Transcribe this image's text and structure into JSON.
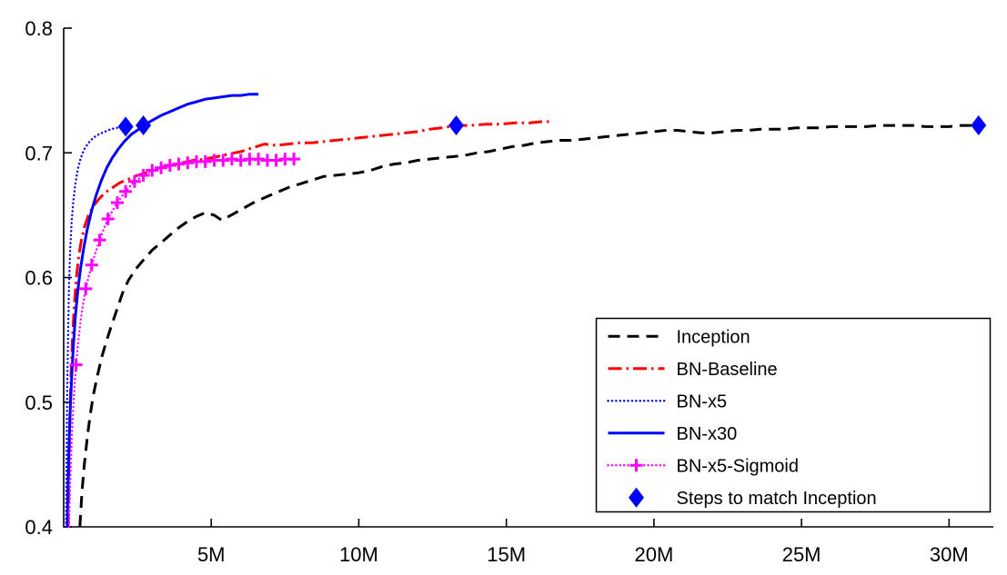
{
  "chart_data": {
    "type": "line",
    "title": "",
    "xlabel": "",
    "ylabel": "",
    "xlim": [
      0,
      31.5
    ],
    "ylim": [
      0.4,
      0.8
    ],
    "grid": false,
    "background": "#ffffff",
    "axis_color": "#000000",
    "x_unit": "training steps (millions)",
    "y_unit": "validation accuracy",
    "x_ticks": [
      {
        "value": 5,
        "label": "5M"
      },
      {
        "value": 10,
        "label": "10M"
      },
      {
        "value": 15,
        "label": "15M"
      },
      {
        "value": 20,
        "label": "20M"
      },
      {
        "value": 25,
        "label": "25M"
      },
      {
        "value": 30,
        "label": "30M"
      }
    ],
    "y_ticks": [
      {
        "value": 0.4,
        "label": "0.4"
      },
      {
        "value": 0.5,
        "label": "0.5"
      },
      {
        "value": 0.6,
        "label": "0.6"
      },
      {
        "value": 0.7,
        "label": "0.7"
      },
      {
        "value": 0.8,
        "label": "0.8"
      }
    ],
    "series": [
      {
        "name": "Inception",
        "color": "#000000",
        "line": "dashed",
        "width": 3,
        "marker": "none",
        "points": [
          [
            0.55,
            0.4
          ],
          [
            0.62,
            0.428
          ],
          [
            0.7,
            0.45
          ],
          [
            0.8,
            0.472
          ],
          [
            0.9,
            0.49
          ],
          [
            1.0,
            0.505
          ],
          [
            1.15,
            0.522
          ],
          [
            1.3,
            0.537
          ],
          [
            1.45,
            0.549
          ],
          [
            1.6,
            0.56
          ],
          [
            1.8,
            0.574
          ],
          [
            2.0,
            0.588
          ],
          [
            2.2,
            0.598
          ],
          [
            2.45,
            0.607
          ],
          [
            2.7,
            0.614
          ],
          [
            3.0,
            0.622
          ],
          [
            3.3,
            0.628
          ],
          [
            3.6,
            0.634
          ],
          [
            3.9,
            0.64
          ],
          [
            4.2,
            0.645
          ],
          [
            4.5,
            0.649
          ],
          [
            4.8,
            0.652
          ],
          [
            5.1,
            0.65
          ],
          [
            5.35,
            0.646
          ],
          [
            5.6,
            0.649
          ],
          [
            5.9,
            0.653
          ],
          [
            6.2,
            0.657
          ],
          [
            6.5,
            0.661
          ],
          [
            6.8,
            0.664
          ],
          [
            7.1,
            0.667
          ],
          [
            7.4,
            0.67
          ],
          [
            7.7,
            0.673
          ],
          [
            8.0,
            0.675
          ],
          [
            8.4,
            0.678
          ],
          [
            8.8,
            0.681
          ],
          [
            9.2,
            0.682
          ],
          [
            9.6,
            0.683
          ],
          [
            10.0,
            0.684
          ],
          [
            10.4,
            0.686
          ],
          [
            10.8,
            0.689
          ],
          [
            11.2,
            0.691
          ],
          [
            11.6,
            0.692
          ],
          [
            12.0,
            0.694
          ],
          [
            12.4,
            0.695
          ],
          [
            12.8,
            0.696
          ],
          [
            13.2,
            0.697
          ],
          [
            13.6,
            0.698
          ],
          [
            14.0,
            0.7
          ],
          [
            14.4,
            0.701
          ],
          [
            14.8,
            0.703
          ],
          [
            15.2,
            0.705
          ],
          [
            15.6,
            0.706
          ],
          [
            16.0,
            0.708
          ],
          [
            16.4,
            0.709
          ],
          [
            16.8,
            0.71
          ],
          [
            17.2,
            0.71
          ],
          [
            17.6,
            0.711
          ],
          [
            18.0,
            0.712
          ],
          [
            18.4,
            0.713
          ],
          [
            18.8,
            0.714
          ],
          [
            19.2,
            0.715
          ],
          [
            19.6,
            0.716
          ],
          [
            20.0,
            0.717
          ],
          [
            20.4,
            0.718
          ],
          [
            20.8,
            0.718
          ],
          [
            21.2,
            0.717
          ],
          [
            21.6,
            0.716
          ],
          [
            22.0,
            0.716
          ],
          [
            22.4,
            0.717
          ],
          [
            22.8,
            0.718
          ],
          [
            23.2,
            0.718
          ],
          [
            23.6,
            0.719
          ],
          [
            24.0,
            0.719
          ],
          [
            24.4,
            0.719
          ],
          [
            24.8,
            0.72
          ],
          [
            25.2,
            0.72
          ],
          [
            25.6,
            0.72
          ],
          [
            26.0,
            0.721
          ],
          [
            26.4,
            0.721
          ],
          [
            26.8,
            0.721
          ],
          [
            27.2,
            0.721
          ],
          [
            27.6,
            0.722
          ],
          [
            28.0,
            0.722
          ],
          [
            28.4,
            0.722
          ],
          [
            28.8,
            0.722
          ],
          [
            29.2,
            0.721
          ],
          [
            29.6,
            0.721
          ],
          [
            30.0,
            0.721
          ],
          [
            30.4,
            0.722
          ],
          [
            31.0,
            0.722
          ]
        ]
      },
      {
        "name": "BN-Baseline",
        "color": "#ff0000",
        "line": "dashdot",
        "width": 3,
        "marker": "none",
        "points": [
          [
            0.15,
            0.4
          ],
          [
            0.18,
            0.448
          ],
          [
            0.21,
            0.487
          ],
          [
            0.25,
            0.522
          ],
          [
            0.3,
            0.552
          ],
          [
            0.36,
            0.578
          ],
          [
            0.43,
            0.6
          ],
          [
            0.51,
            0.617
          ],
          [
            0.6,
            0.63
          ],
          [
            0.71,
            0.641
          ],
          [
            0.84,
            0.65
          ],
          [
            1.0,
            0.657
          ],
          [
            1.2,
            0.663
          ],
          [
            1.4,
            0.668
          ],
          [
            1.65,
            0.672
          ],
          [
            1.9,
            0.676
          ],
          [
            2.2,
            0.679
          ],
          [
            2.5,
            0.682
          ],
          [
            2.8,
            0.684
          ],
          [
            3.1,
            0.687
          ],
          [
            3.4,
            0.689
          ],
          [
            3.7,
            0.69
          ],
          [
            4.0,
            0.692
          ],
          [
            4.4,
            0.694
          ],
          [
            4.8,
            0.695
          ],
          [
            5.2,
            0.697
          ],
          [
            5.6,
            0.699
          ],
          [
            6.0,
            0.701
          ],
          [
            6.4,
            0.704
          ],
          [
            6.8,
            0.707
          ],
          [
            7.2,
            0.706
          ],
          [
            7.6,
            0.707
          ],
          [
            8.0,
            0.708
          ],
          [
            8.4,
            0.708
          ],
          [
            8.8,
            0.709
          ],
          [
            9.2,
            0.71
          ],
          [
            9.6,
            0.711
          ],
          [
            10.0,
            0.712
          ],
          [
            10.4,
            0.713
          ],
          [
            10.8,
            0.714
          ],
          [
            11.2,
            0.715
          ],
          [
            11.6,
            0.716
          ],
          [
            12.0,
            0.717
          ],
          [
            12.4,
            0.719
          ],
          [
            12.8,
            0.72
          ],
          [
            13.3,
            0.722
          ],
          [
            13.8,
            0.722
          ],
          [
            14.3,
            0.723
          ],
          [
            14.8,
            0.723
          ],
          [
            15.3,
            0.724
          ],
          [
            15.8,
            0.724
          ],
          [
            16.2,
            0.725
          ],
          [
            16.5,
            0.725
          ]
        ]
      },
      {
        "name": "BN-x5",
        "color": "#0000ff",
        "line": "dotted",
        "width": 2.4,
        "marker": "none",
        "points": [
          [
            0.08,
            0.4
          ],
          [
            0.1,
            0.46
          ],
          [
            0.12,
            0.51
          ],
          [
            0.15,
            0.555
          ],
          [
            0.18,
            0.592
          ],
          [
            0.22,
            0.622
          ],
          [
            0.27,
            0.645
          ],
          [
            0.33,
            0.662
          ],
          [
            0.4,
            0.676
          ],
          [
            0.48,
            0.687
          ],
          [
            0.58,
            0.696
          ],
          [
            0.7,
            0.703
          ],
          [
            0.84,
            0.708
          ],
          [
            1.0,
            0.712
          ],
          [
            1.2,
            0.715
          ],
          [
            1.4,
            0.717
          ],
          [
            1.6,
            0.719
          ],
          [
            1.8,
            0.72
          ],
          [
            2.0,
            0.721
          ],
          [
            2.1,
            0.722
          ]
        ]
      },
      {
        "name": "BN-x30",
        "color": "#0000ff",
        "line": "solid",
        "width": 3,
        "marker": "none",
        "points": [
          [
            0.12,
            0.4
          ],
          [
            0.15,
            0.435
          ],
          [
            0.18,
            0.463
          ],
          [
            0.22,
            0.492
          ],
          [
            0.27,
            0.52
          ],
          [
            0.33,
            0.546
          ],
          [
            0.4,
            0.57
          ],
          [
            0.48,
            0.59
          ],
          [
            0.57,
            0.607
          ],
          [
            0.68,
            0.624
          ],
          [
            0.8,
            0.639
          ],
          [
            0.94,
            0.653
          ],
          [
            1.1,
            0.666
          ],
          [
            1.28,
            0.678
          ],
          [
            1.46,
            0.688
          ],
          [
            1.65,
            0.696
          ],
          [
            1.85,
            0.703
          ],
          [
            2.05,
            0.709
          ],
          [
            2.3,
            0.715
          ],
          [
            2.55,
            0.719
          ],
          [
            2.7,
            0.722
          ],
          [
            3.0,
            0.726
          ],
          [
            3.3,
            0.73
          ],
          [
            3.6,
            0.733
          ],
          [
            3.9,
            0.736
          ],
          [
            4.2,
            0.739
          ],
          [
            4.5,
            0.741
          ],
          [
            4.8,
            0.743
          ],
          [
            5.1,
            0.744
          ],
          [
            5.4,
            0.745
          ],
          [
            5.7,
            0.746
          ],
          [
            6.0,
            0.746
          ],
          [
            6.3,
            0.747
          ],
          [
            6.6,
            0.747
          ]
        ]
      },
      {
        "name": "BN-x5-Sigmoid",
        "color": "#ff00ff",
        "line": "dotted",
        "width": 2.4,
        "marker": "plus",
        "points": [
          [
            0.18,
            0.4
          ],
          [
            0.23,
            0.443
          ],
          [
            0.29,
            0.48
          ],
          [
            0.36,
            0.51
          ],
          [
            0.42,
            0.53
          ],
          [
            0.5,
            0.55
          ],
          [
            0.58,
            0.566
          ],
          [
            0.66,
            0.579
          ],
          [
            0.75,
            0.591
          ],
          [
            0.85,
            0.601
          ],
          [
            0.95,
            0.61
          ],
          [
            1.08,
            0.62
          ],
          [
            1.22,
            0.63
          ],
          [
            1.36,
            0.639
          ],
          [
            1.5,
            0.647
          ],
          [
            1.66,
            0.654
          ],
          [
            1.82,
            0.66
          ],
          [
            2.0,
            0.666
          ],
          [
            2.2,
            0.672
          ],
          [
            2.4,
            0.677
          ],
          [
            2.6,
            0.68
          ],
          [
            2.8,
            0.683
          ],
          [
            3.0,
            0.686
          ],
          [
            3.2,
            0.688
          ],
          [
            3.4,
            0.689
          ],
          [
            3.6,
            0.69
          ],
          [
            3.8,
            0.691
          ],
          [
            4.0,
            0.692
          ],
          [
            4.25,
            0.692
          ],
          [
            4.5,
            0.693
          ],
          [
            4.75,
            0.693
          ],
          [
            5.0,
            0.694
          ],
          [
            5.25,
            0.694
          ],
          [
            5.5,
            0.694
          ],
          [
            5.75,
            0.695
          ],
          [
            6.0,
            0.694
          ],
          [
            6.25,
            0.695
          ],
          [
            6.5,
            0.694
          ],
          [
            6.75,
            0.695
          ],
          [
            7.0,
            0.694
          ],
          [
            7.25,
            0.694
          ],
          [
            7.5,
            0.695
          ],
          [
            7.75,
            0.694
          ],
          [
            8.0,
            0.695
          ]
        ],
        "marker_points": [
          [
            0.42,
            0.53
          ],
          [
            0.75,
            0.591
          ],
          [
            0.95,
            0.61
          ],
          [
            1.22,
            0.63
          ],
          [
            1.5,
            0.647
          ],
          [
            1.82,
            0.66
          ],
          [
            2.1,
            0.669
          ],
          [
            2.4,
            0.677
          ],
          [
            2.7,
            0.682
          ],
          [
            3.0,
            0.686
          ],
          [
            3.3,
            0.688
          ],
          [
            3.6,
            0.69
          ],
          [
            3.9,
            0.691
          ],
          [
            4.2,
            0.692
          ],
          [
            4.5,
            0.693
          ],
          [
            4.8,
            0.693
          ],
          [
            5.1,
            0.694
          ],
          [
            5.4,
            0.694
          ],
          [
            5.7,
            0.695
          ],
          [
            6.0,
            0.694
          ],
          [
            6.3,
            0.695
          ],
          [
            6.6,
            0.695
          ],
          [
            6.9,
            0.694
          ],
          [
            7.2,
            0.694
          ],
          [
            7.5,
            0.695
          ],
          [
            7.8,
            0.695
          ]
        ]
      },
      {
        "name": "Steps to match Inception",
        "color": "#0000ff",
        "line": "none",
        "width": 0,
        "marker": "diamond",
        "points": [
          [
            2.1,
            0.721
          ],
          [
            2.7,
            0.722
          ],
          [
            13.3,
            0.722
          ],
          [
            31.0,
            0.722
          ]
        ]
      }
    ],
    "legend": {
      "position": "lower-right",
      "entries": [
        "Inception",
        "BN-Baseline",
        "BN-x5",
        "BN-x30",
        "BN-x5-Sigmoid",
        "Steps to match Inception"
      ]
    }
  }
}
